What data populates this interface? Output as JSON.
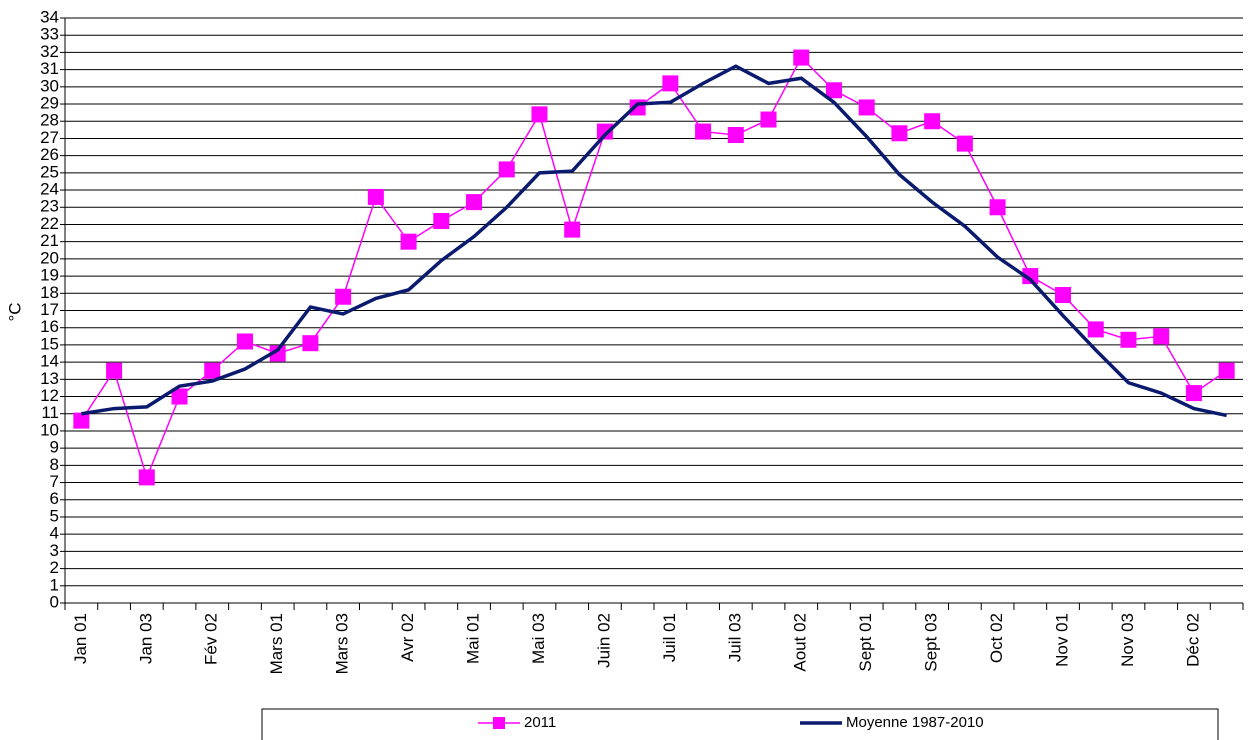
{
  "chart_data": {
    "type": "line",
    "y_label": "°C",
    "categories": [
      "Jan 01",
      null,
      "Jan 03",
      null,
      "Fév 02",
      null,
      "Mars 01",
      null,
      "Mars 03",
      null,
      "Avr 02",
      null,
      "Mai 01",
      null,
      "Mai 03",
      null,
      "Juin 02",
      null,
      "Juil 01",
      null,
      "Juil 03",
      null,
      "Aout 02",
      null,
      "Sept 01",
      null,
      "Sept 03",
      null,
      "Oct 02",
      null,
      "Nov 01",
      null,
      "Nov 03",
      null,
      "Déc 02",
      null
    ],
    "series": [
      {
        "name": "2011",
        "color": "#ff00ff",
        "marker": "square",
        "values": [
          10.6,
          13.5,
          7.3,
          12.0,
          13.5,
          15.2,
          14.5,
          15.1,
          17.8,
          23.6,
          21.0,
          22.2,
          23.3,
          25.2,
          28.4,
          21.7,
          27.4,
          28.8,
          30.2,
          27.4,
          27.2,
          28.1,
          31.7,
          29.8,
          28.8,
          27.3,
          28.0,
          26.7,
          23.0,
          19.0,
          17.9,
          15.9,
          15.3,
          15.5,
          12.2,
          13.5
        ]
      },
      {
        "name": "Moyenne 1987-2010",
        "color": "#0a1a6e",
        "marker": "none",
        "values": [
          11.0,
          11.3,
          11.4,
          12.6,
          12.9,
          13.6,
          14.7,
          17.2,
          16.8,
          17.7,
          18.2,
          19.9,
          21.3,
          23.0,
          25.0,
          25.1,
          27.2,
          29.0,
          29.1,
          30.2,
          31.2,
          30.2,
          30.5,
          29.1,
          27.1,
          24.9,
          23.3,
          21.9,
          20.1,
          18.8,
          16.7,
          14.7,
          12.8,
          12.2,
          11.3,
          10.9
        ]
      }
    ],
    "ylim": [
      0,
      34
    ],
    "yticks": [
      0,
      1,
      2,
      3,
      4,
      5,
      6,
      7,
      8,
      9,
      10,
      11,
      12,
      13,
      14,
      15,
      16,
      17,
      18,
      19,
      20,
      21,
      22,
      23,
      24,
      25,
      26,
      27,
      28,
      29,
      30,
      31,
      32,
      33,
      34
    ],
    "grid": true,
    "legend": "bottom"
  }
}
